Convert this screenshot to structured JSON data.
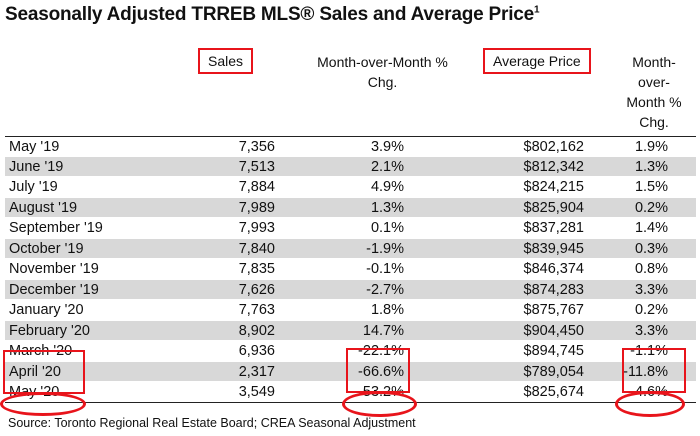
{
  "title": "Seasonally Adjusted TRREB MLS® Sales and Average Price",
  "title_sup": "1",
  "headers": {
    "sales": "Sales",
    "mom_sales_1": "Month-over-Month %",
    "mom_sales_2": "Chg.",
    "avg_price": "Average Price",
    "mom_price_1": "Month-",
    "mom_price_2": "over-",
    "mom_price_3": "Month %",
    "mom_price_4": "Chg."
  },
  "rows": [
    {
      "month": "May '19",
      "sales": "7,356",
      "sales_chg": "3.9%",
      "price": "$802,162",
      "price_chg": "1.9%"
    },
    {
      "month": "June '19",
      "sales": "7,513",
      "sales_chg": "2.1%",
      "price": "$812,342",
      "price_chg": "1.3%"
    },
    {
      "month": "July '19",
      "sales": "7,884",
      "sales_chg": "4.9%",
      "price": "$824,215",
      "price_chg": "1.5%"
    },
    {
      "month": "August '19",
      "sales": "7,989",
      "sales_chg": "1.3%",
      "price": "$825,904",
      "price_chg": "0.2%"
    },
    {
      "month": "September '19",
      "sales": "7,993",
      "sales_chg": "0.1%",
      "price": "$837,281",
      "price_chg": "1.4%"
    },
    {
      "month": "October '19",
      "sales": "7,840",
      "sales_chg": "-1.9%",
      "price": "$839,945",
      "price_chg": "0.3%"
    },
    {
      "month": "November '19",
      "sales": "7,835",
      "sales_chg": "-0.1%",
      "price": "$846,374",
      "price_chg": "0.8%"
    },
    {
      "month": "December '19",
      "sales": "7,626",
      "sales_chg": "-2.7%",
      "price": "$874,283",
      "price_chg": "3.3%"
    },
    {
      "month": "January '20",
      "sales": "7,763",
      "sales_chg": "1.8%",
      "price": "$875,767",
      "price_chg": "0.2%"
    },
    {
      "month": "February '20",
      "sales": "8,902",
      "sales_chg": "14.7%",
      "price": "$904,450",
      "price_chg": "3.3%"
    },
    {
      "month": "March '20",
      "sales": "6,936",
      "sales_chg": "-22.1%",
      "price": "$894,745",
      "price_chg": "-1.1%"
    },
    {
      "month": "April '20",
      "sales": "2,317",
      "sales_chg": "-66.6%",
      "price": "$789,054",
      "price_chg": "-11.8%"
    },
    {
      "month": "May '20",
      "sales": "3,549",
      "sales_chg": "53.2%",
      "price": "$825,674",
      "price_chg": "4.6%"
    }
  ],
  "source": "Source: Toronto Regional Real Estate Board; CREA Seasonal Adjustment",
  "colors": {
    "highlight": "#e8141b",
    "row_shade": "#d8d8d8"
  }
}
